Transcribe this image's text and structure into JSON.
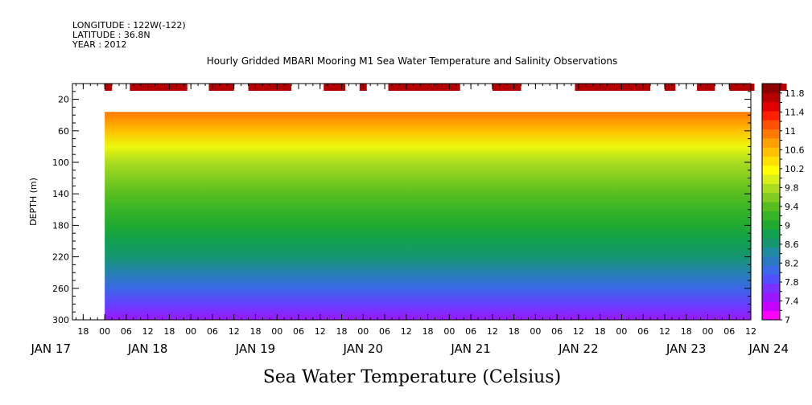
{
  "header": {
    "longitude": "LONGITUDE : 122W(-122)",
    "latitude": "LATITUDE : 36.8N",
    "year": "YEAR : 2012",
    "title": "Hourly Gridded MBARI Mooring M1 Sea Water Temperature and Salinity Observations"
  },
  "chart_data": {
    "type": "heatmap",
    "title": "Hourly Gridded MBARI Mooring M1 Sea Water Temperature and Salinity Observations",
    "xlabel": "",
    "ylabel": "DEPTH (m)",
    "colorbar_label": "Sea Water Temperature (Celsius)",
    "time_range_hours": [
      -9,
      180
    ],
    "data_start_hour": 0,
    "y_range": [
      300,
      0
    ],
    "y_axis_reversed": true,
    "y_ticks": [
      20,
      60,
      100,
      140,
      180,
      220,
      260,
      300
    ],
    "x_tick_labels": [
      "18",
      "00",
      "06",
      "12",
      "18",
      "00",
      "06",
      "12",
      "18",
      "00",
      "06",
      "12",
      "18",
      "00",
      "06",
      "12",
      "18",
      "00",
      "06",
      "12",
      "18",
      "00",
      "06",
      "12",
      "18",
      "00",
      "06",
      "12",
      "18",
      "00",
      "06",
      "12"
    ],
    "date_labels": [
      "JAN 17",
      "JAN 18",
      "JAN 19",
      "JAN 20",
      "JAN 21",
      "JAN 22",
      "JAN 23",
      "JAN 24"
    ],
    "colorbar_levels": [
      7,
      7.2,
      7.4,
      7.6,
      7.8,
      8,
      8.2,
      8.4,
      8.6,
      8.8,
      9,
      9.2,
      9.4,
      9.6,
      9.8,
      10,
      10.2,
      10.4,
      10.6,
      10.8,
      11,
      11.2,
      11.4,
      11.6,
      11.8,
      12
    ],
    "colorbar_labels": [
      "11.8",
      "11.4",
      "11",
      "10.6",
      "10.2",
      "9.8",
      "9.4",
      "9",
      "8.6",
      "8.2",
      "7.8",
      "7.4",
      "7"
    ],
    "colors": [
      "#ff00ff",
      "#c800ff",
      "#9a18ff",
      "#7a30ff",
      "#5050ff",
      "#3a68e6",
      "#2a78c0",
      "#1f8aa0",
      "#169670",
      "#10a050",
      "#20aa30",
      "#38b428",
      "#58be20",
      "#80cc20",
      "#aadc20",
      "#d8f018",
      "#ffff00",
      "#ffe000",
      "#ffc000",
      "#ffa000",
      "#ff7800",
      "#ff5000",
      "#ff2000",
      "#e00000",
      "#b40000",
      "#8c0000"
    ],
    "temperature_profile": {
      "depths": [
        36,
        60,
        80,
        100,
        120,
        140,
        160,
        180,
        200,
        220,
        240,
        260,
        280,
        300
      ],
      "temps": [
        11.0,
        10.6,
        10.1,
        9.8,
        9.6,
        9.4,
        9.2,
        9.0,
        8.8,
        8.6,
        8.3,
        8.0,
        7.7,
        7.4
      ]
    },
    "surface_obs_hours": [
      [
        0,
        2
      ],
      [
        7,
        23
      ],
      [
        29,
        36
      ],
      [
        40,
        52
      ],
      [
        61,
        67
      ],
      [
        71,
        73
      ],
      [
        79,
        99
      ],
      [
        108,
        116
      ],
      [
        131,
        152
      ],
      [
        156,
        159
      ],
      [
        165,
        170
      ],
      [
        174,
        181
      ],
      [
        188,
        190
      ]
    ],
    "grid": false
  }
}
